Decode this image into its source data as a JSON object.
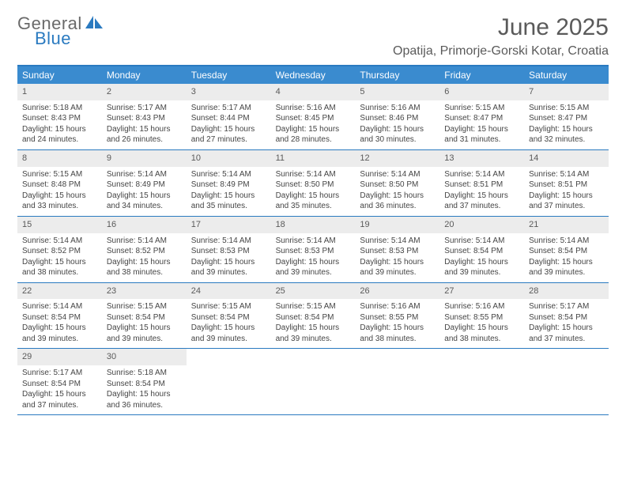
{
  "logo": {
    "line1": "General",
    "line2": "Blue"
  },
  "title": "June 2025",
  "location": "Opatija, Primorje-Gorski Kotar, Croatia",
  "day_header_bg": "#3a8bcf",
  "day_header_text": "#ffffff",
  "border_color": "#2a7ac0",
  "daynum_bg": "#ececec",
  "text_color": "#454545",
  "title_color": "#5a5a5a",
  "day_names": [
    "Sunday",
    "Monday",
    "Tuesday",
    "Wednesday",
    "Thursday",
    "Friday",
    "Saturday"
  ],
  "weeks": [
    [
      {
        "n": "1",
        "sr": "Sunrise: 5:18 AM",
        "ss": "Sunset: 8:43 PM",
        "d1": "Daylight: 15 hours",
        "d2": "and 24 minutes."
      },
      {
        "n": "2",
        "sr": "Sunrise: 5:17 AM",
        "ss": "Sunset: 8:43 PM",
        "d1": "Daylight: 15 hours",
        "d2": "and 26 minutes."
      },
      {
        "n": "3",
        "sr": "Sunrise: 5:17 AM",
        "ss": "Sunset: 8:44 PM",
        "d1": "Daylight: 15 hours",
        "d2": "and 27 minutes."
      },
      {
        "n": "4",
        "sr": "Sunrise: 5:16 AM",
        "ss": "Sunset: 8:45 PM",
        "d1": "Daylight: 15 hours",
        "d2": "and 28 minutes."
      },
      {
        "n": "5",
        "sr": "Sunrise: 5:16 AM",
        "ss": "Sunset: 8:46 PM",
        "d1": "Daylight: 15 hours",
        "d2": "and 30 minutes."
      },
      {
        "n": "6",
        "sr": "Sunrise: 5:15 AM",
        "ss": "Sunset: 8:47 PM",
        "d1": "Daylight: 15 hours",
        "d2": "and 31 minutes."
      },
      {
        "n": "7",
        "sr": "Sunrise: 5:15 AM",
        "ss": "Sunset: 8:47 PM",
        "d1": "Daylight: 15 hours",
        "d2": "and 32 minutes."
      }
    ],
    [
      {
        "n": "8",
        "sr": "Sunrise: 5:15 AM",
        "ss": "Sunset: 8:48 PM",
        "d1": "Daylight: 15 hours",
        "d2": "and 33 minutes."
      },
      {
        "n": "9",
        "sr": "Sunrise: 5:14 AM",
        "ss": "Sunset: 8:49 PM",
        "d1": "Daylight: 15 hours",
        "d2": "and 34 minutes."
      },
      {
        "n": "10",
        "sr": "Sunrise: 5:14 AM",
        "ss": "Sunset: 8:49 PM",
        "d1": "Daylight: 15 hours",
        "d2": "and 35 minutes."
      },
      {
        "n": "11",
        "sr": "Sunrise: 5:14 AM",
        "ss": "Sunset: 8:50 PM",
        "d1": "Daylight: 15 hours",
        "d2": "and 35 minutes."
      },
      {
        "n": "12",
        "sr": "Sunrise: 5:14 AM",
        "ss": "Sunset: 8:50 PM",
        "d1": "Daylight: 15 hours",
        "d2": "and 36 minutes."
      },
      {
        "n": "13",
        "sr": "Sunrise: 5:14 AM",
        "ss": "Sunset: 8:51 PM",
        "d1": "Daylight: 15 hours",
        "d2": "and 37 minutes."
      },
      {
        "n": "14",
        "sr": "Sunrise: 5:14 AM",
        "ss": "Sunset: 8:51 PM",
        "d1": "Daylight: 15 hours",
        "d2": "and 37 minutes."
      }
    ],
    [
      {
        "n": "15",
        "sr": "Sunrise: 5:14 AM",
        "ss": "Sunset: 8:52 PM",
        "d1": "Daylight: 15 hours",
        "d2": "and 38 minutes."
      },
      {
        "n": "16",
        "sr": "Sunrise: 5:14 AM",
        "ss": "Sunset: 8:52 PM",
        "d1": "Daylight: 15 hours",
        "d2": "and 38 minutes."
      },
      {
        "n": "17",
        "sr": "Sunrise: 5:14 AM",
        "ss": "Sunset: 8:53 PM",
        "d1": "Daylight: 15 hours",
        "d2": "and 39 minutes."
      },
      {
        "n": "18",
        "sr": "Sunrise: 5:14 AM",
        "ss": "Sunset: 8:53 PM",
        "d1": "Daylight: 15 hours",
        "d2": "and 39 minutes."
      },
      {
        "n": "19",
        "sr": "Sunrise: 5:14 AM",
        "ss": "Sunset: 8:53 PM",
        "d1": "Daylight: 15 hours",
        "d2": "and 39 minutes."
      },
      {
        "n": "20",
        "sr": "Sunrise: 5:14 AM",
        "ss": "Sunset: 8:54 PM",
        "d1": "Daylight: 15 hours",
        "d2": "and 39 minutes."
      },
      {
        "n": "21",
        "sr": "Sunrise: 5:14 AM",
        "ss": "Sunset: 8:54 PM",
        "d1": "Daylight: 15 hours",
        "d2": "and 39 minutes."
      }
    ],
    [
      {
        "n": "22",
        "sr": "Sunrise: 5:14 AM",
        "ss": "Sunset: 8:54 PM",
        "d1": "Daylight: 15 hours",
        "d2": "and 39 minutes."
      },
      {
        "n": "23",
        "sr": "Sunrise: 5:15 AM",
        "ss": "Sunset: 8:54 PM",
        "d1": "Daylight: 15 hours",
        "d2": "and 39 minutes."
      },
      {
        "n": "24",
        "sr": "Sunrise: 5:15 AM",
        "ss": "Sunset: 8:54 PM",
        "d1": "Daylight: 15 hours",
        "d2": "and 39 minutes."
      },
      {
        "n": "25",
        "sr": "Sunrise: 5:15 AM",
        "ss": "Sunset: 8:54 PM",
        "d1": "Daylight: 15 hours",
        "d2": "and 39 minutes."
      },
      {
        "n": "26",
        "sr": "Sunrise: 5:16 AM",
        "ss": "Sunset: 8:55 PM",
        "d1": "Daylight: 15 hours",
        "d2": "and 38 minutes."
      },
      {
        "n": "27",
        "sr": "Sunrise: 5:16 AM",
        "ss": "Sunset: 8:55 PM",
        "d1": "Daylight: 15 hours",
        "d2": "and 38 minutes."
      },
      {
        "n": "28",
        "sr": "Sunrise: 5:17 AM",
        "ss": "Sunset: 8:54 PM",
        "d1": "Daylight: 15 hours",
        "d2": "and 37 minutes."
      }
    ],
    [
      {
        "n": "29",
        "sr": "Sunrise: 5:17 AM",
        "ss": "Sunset: 8:54 PM",
        "d1": "Daylight: 15 hours",
        "d2": "and 37 minutes."
      },
      {
        "n": "30",
        "sr": "Sunrise: 5:18 AM",
        "ss": "Sunset: 8:54 PM",
        "d1": "Daylight: 15 hours",
        "d2": "and 36 minutes."
      },
      null,
      null,
      null,
      null,
      null
    ]
  ]
}
